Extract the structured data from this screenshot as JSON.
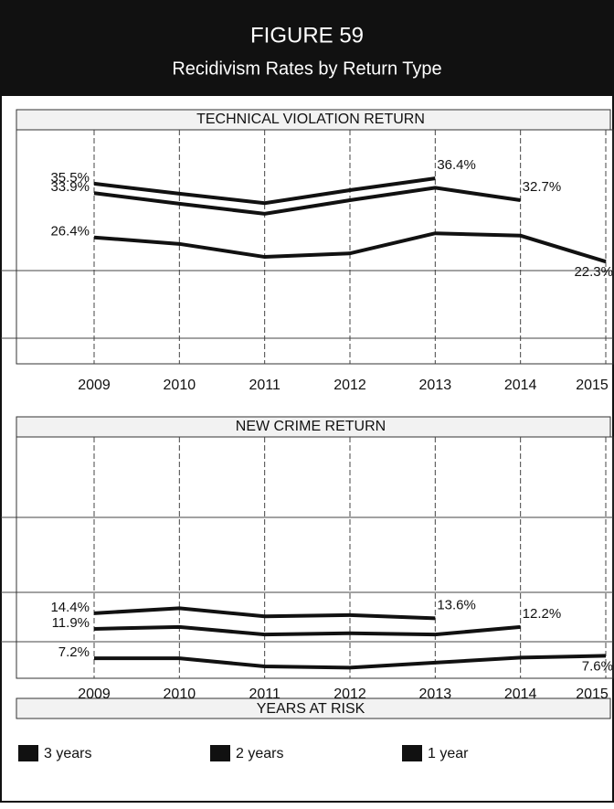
{
  "header": {
    "title": "FIGURE 59",
    "subtitle": "Recidivism Rates by Return Type"
  },
  "chart_data": [
    {
      "type": "line",
      "title": "TECHNICAL VIOLATION RETURN",
      "categories": [
        "2009",
        "2010",
        "2011",
        "2012",
        "2013",
        "2014",
        "2015"
      ],
      "ylim": [
        5,
        44
      ],
      "series": [
        {
          "name": "3 years",
          "color": "#111111",
          "values": [
            35.5,
            33.8,
            32.2,
            34.4,
            36.4,
            null,
            null
          ],
          "value_labels": [
            "35.5%",
            null,
            null,
            null,
            "36.4%",
            null,
            null
          ]
        },
        {
          "name": "2 years",
          "color": "#111111",
          "values": [
            33.9,
            32.1,
            30.4,
            32.7,
            34.8,
            32.7,
            null
          ],
          "value_labels": [
            "33.9%",
            null,
            null,
            null,
            null,
            "32.7%",
            null
          ]
        },
        {
          "name": "1 year",
          "color": "#111111",
          "values": [
            26.4,
            25.3,
            23.1,
            23.7,
            27.1,
            26.7,
            22.3
          ],
          "value_labels": [
            "26.4%",
            null,
            null,
            null,
            null,
            null,
            "22.3%"
          ]
        }
      ]
    },
    {
      "type": "line",
      "title": "NEW CRIME RETURN",
      "categories": [
        "2009",
        "2010",
        "2011",
        "2012",
        "2013",
        "2014",
        "2015"
      ],
      "ylim": [
        4,
        42
      ],
      "series": [
        {
          "name": "3 years",
          "color": "#111111",
          "values": [
            14.4,
            15.2,
            13.9,
            14.1,
            13.6,
            null,
            null
          ],
          "value_labels": [
            "14.4%",
            null,
            null,
            null,
            "13.6%",
            null,
            null
          ]
        },
        {
          "name": "2 years",
          "color": "#111111",
          "values": [
            11.9,
            12.2,
            11.0,
            11.2,
            11.0,
            12.2,
            null
          ],
          "value_labels": [
            "11.9%",
            null,
            null,
            null,
            null,
            "12.2%",
            null
          ]
        },
        {
          "name": "1 year",
          "color": "#111111",
          "values": [
            7.2,
            7.2,
            5.9,
            5.7,
            6.5,
            7.3,
            7.6
          ],
          "value_labels": [
            "7.2%",
            null,
            null,
            null,
            null,
            null,
            "7.6%"
          ]
        }
      ]
    }
  ],
  "legend": {
    "title": "YEARS AT RISK"
  }
}
